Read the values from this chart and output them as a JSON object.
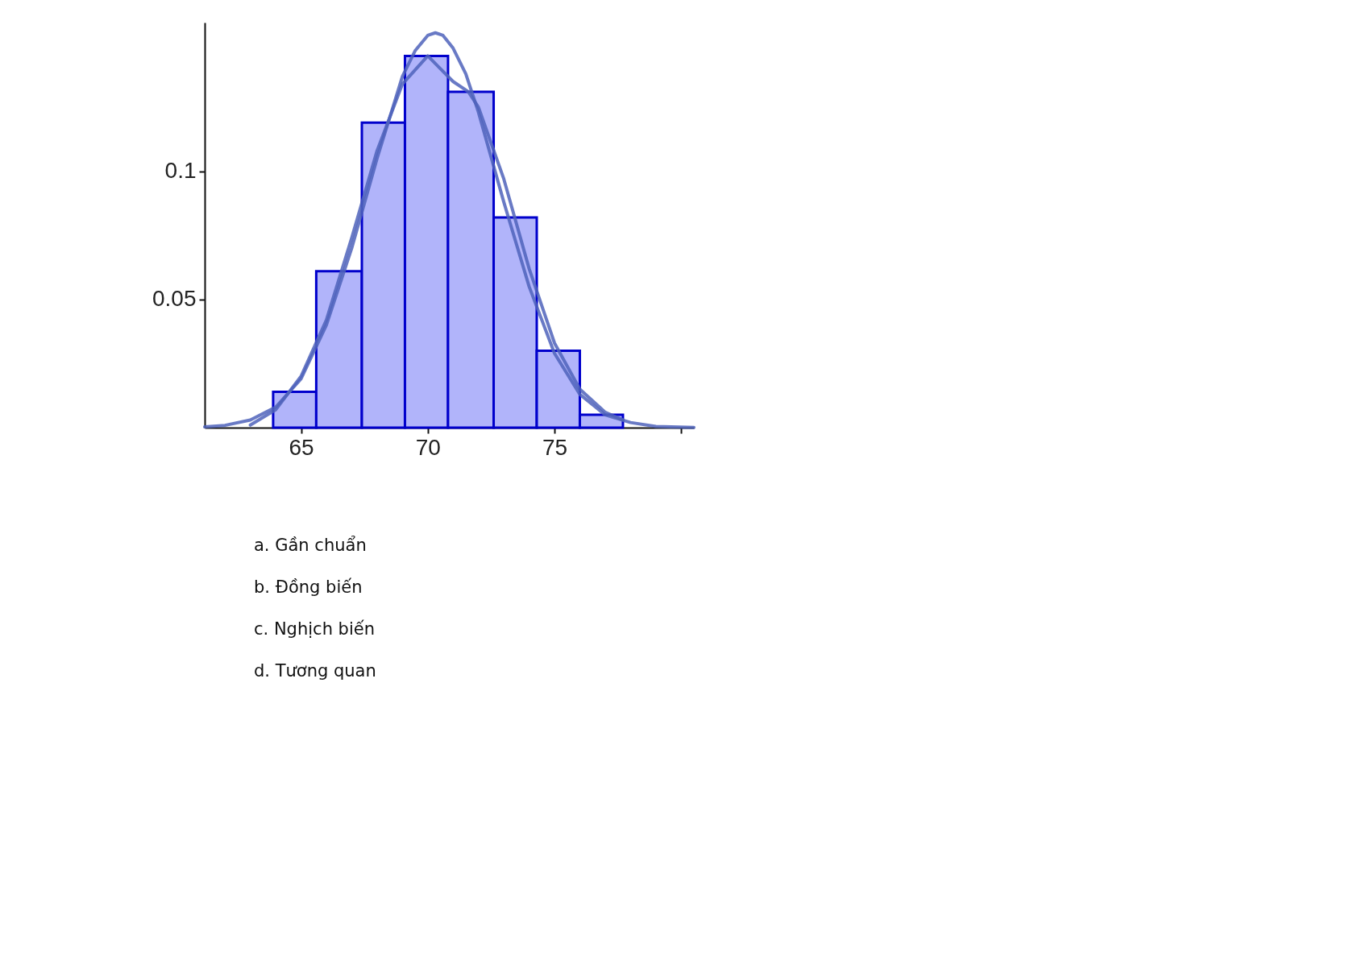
{
  "chart_data": {
    "type": "histogram",
    "bins": [
      63.9,
      65.6,
      67.4,
      69.1,
      70.8,
      72.6,
      74.3,
      76.0,
      77.7
    ],
    "values": [
      0.014,
      0.061,
      0.119,
      0.145,
      0.131,
      0.082,
      0.03,
      0.005
    ],
    "color": "#b1b4fa",
    "series": [
      {
        "type": "line",
        "color": "#4f63bb",
        "x": [
          61.2,
          62,
          63,
          64,
          65,
          66,
          67,
          68,
          69,
          69.5,
          70,
          70.3,
          70.6,
          71,
          71.5,
          72,
          73,
          74,
          75,
          76,
          77,
          78,
          79,
          80.5
        ],
        "values": [
          0.0003,
          0.0009,
          0.003,
          0.008,
          0.019,
          0.04,
          0.07,
          0.105,
          0.137,
          0.147,
          0.153,
          0.154,
          0.153,
          0.148,
          0.138,
          0.123,
          0.088,
          0.055,
          0.029,
          0.013,
          0.005,
          0.002,
          0.0005,
          0.0001
        ]
      },
      {
        "type": "line",
        "color": "#4f63bb",
        "x": [
          63.0,
          64,
          65,
          66,
          67,
          68,
          69,
          70.0,
          70.5,
          71,
          71.6,
          72,
          73,
          74,
          75,
          76,
          77,
          77.7
        ],
        "values": [
          0.001,
          0.007,
          0.02,
          0.042,
          0.074,
          0.108,
          0.134,
          0.145,
          0.14,
          0.135,
          0.131,
          0.125,
          0.097,
          0.062,
          0.033,
          0.015,
          0.006,
          0.003
        ]
      }
    ],
    "xlim": [
      61.2,
      80.5
    ],
    "xticks": [
      65,
      70,
      75,
      {
        "value": 80,
        "label": null
      }
    ],
    "ylim": [
      0,
      0.158
    ],
    "yticks": [
      0.05,
      0.1
    ],
    "grid": false,
    "line_style": "solid",
    "annotations": [
      "a. Gần chuẩn",
      "b. Đồng biến",
      "c. Nghịch biến",
      "d. Tương quan"
    ]
  }
}
